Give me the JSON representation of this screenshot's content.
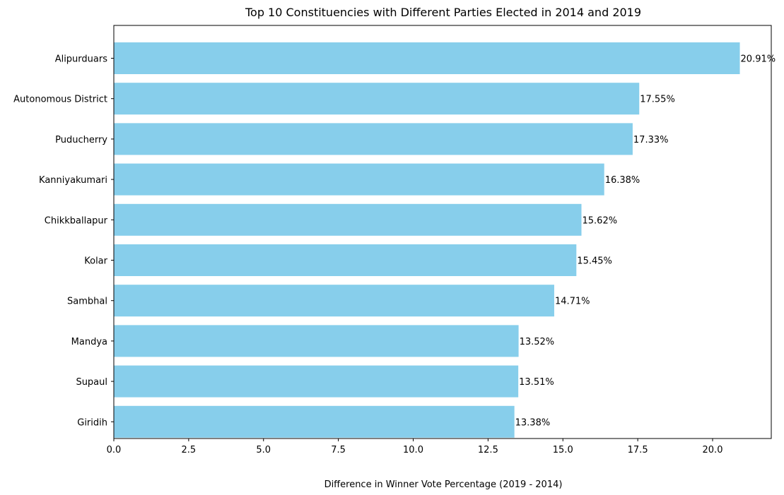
{
  "chart_data": {
    "type": "bar",
    "orientation": "horizontal",
    "title": "Top 10 Constituencies with Different Parties Elected in 2014 and 2019",
    "xlabel": "Difference in Winner Vote Percentage (2019 - 2014)",
    "ylabel": "",
    "xlim": [
      0,
      21.96
    ],
    "xticks": [
      0.0,
      2.5,
      5.0,
      7.5,
      10.0,
      12.5,
      15.0,
      17.5,
      20.0
    ],
    "xtick_labels": [
      "0.0",
      "2.5",
      "5.0",
      "7.5",
      "10.0",
      "12.5",
      "15.0",
      "17.5",
      "20.0"
    ],
    "grid": false,
    "bar_color": "#87CEEB",
    "categories": [
      "Alipurduars",
      "Autonomous District",
      "Puducherry",
      "Kanniyakumari",
      "Chikkballapur",
      "Kolar",
      "Sambhal",
      "Mandya",
      "Supaul",
      "Giridih"
    ],
    "values": [
      20.91,
      17.55,
      17.33,
      16.38,
      15.62,
      15.45,
      14.71,
      13.52,
      13.51,
      13.38
    ],
    "data_labels": [
      "20.91%",
      "17.55%",
      "17.33%",
      "16.38%",
      "15.62%",
      "15.45%",
      "14.71%",
      "13.52%",
      "13.51%",
      "13.38%"
    ]
  }
}
